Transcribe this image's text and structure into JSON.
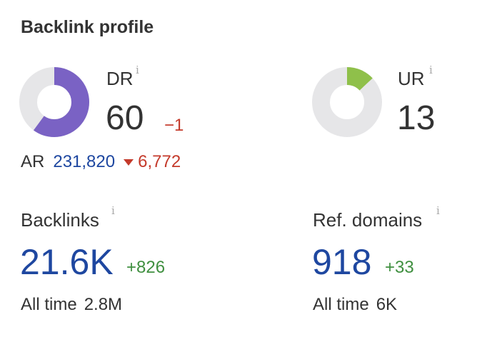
{
  "header": {
    "title": "Backlink profile"
  },
  "dr": {
    "label": "DR",
    "info_icon": "i",
    "value": "60",
    "change": "−1",
    "gauge_value": 60,
    "gauge_max": 100,
    "color": "#7a62c4"
  },
  "ur": {
    "label": "UR",
    "info_icon": "i",
    "value": "13",
    "gauge_value": 13,
    "gauge_max": 100,
    "color": "#8fc04a"
  },
  "ar": {
    "label": "AR",
    "value": "231,820",
    "change": "6,772",
    "change_direction": "down"
  },
  "backlinks": {
    "label": "Backlinks",
    "info_icon": "i",
    "value": "21.6K",
    "change": "+826",
    "alltime_label": "All time",
    "alltime_value": "2.8M"
  },
  "ref_domains": {
    "label": "Ref. domains",
    "info_icon": "i",
    "value": "918",
    "change": "+33",
    "alltime_label": "All time",
    "alltime_value": "6K"
  },
  "colors": {
    "ring_track": "#e6e6e8",
    "link_blue": "#1e47a0",
    "negative_red": "#c43a2b",
    "positive_green": "#3f8f3f"
  }
}
